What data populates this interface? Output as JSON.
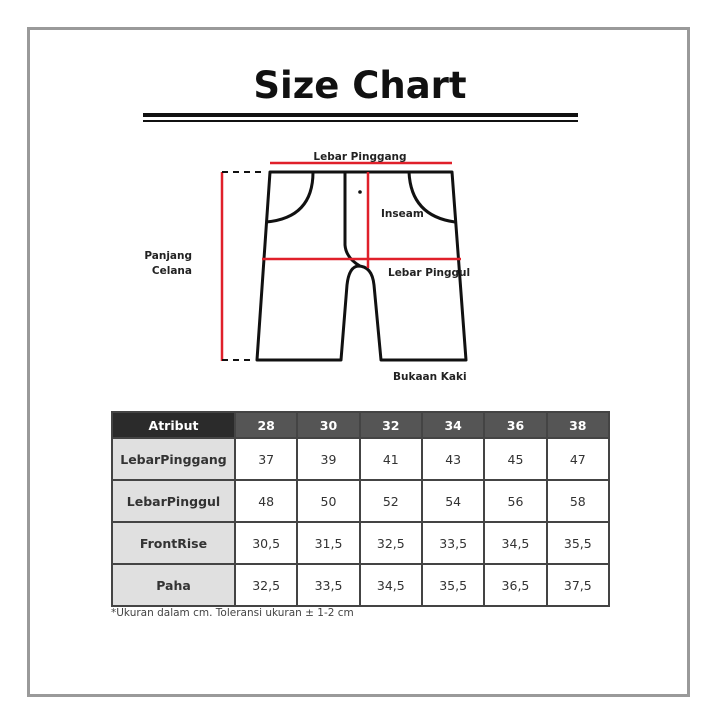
{
  "title": "Size Chart",
  "diagram": {
    "labels": {
      "waist": "Lebar Pinggang",
      "inseam": "Inseam",
      "hip": "Lebar Pinggul",
      "length_1": "Panjang",
      "length_2": "Celana",
      "leg_opening": "Bukaan Kaki"
    },
    "colors": {
      "measure_line": "#e0202a",
      "outline": "#111111"
    }
  },
  "table": {
    "header": [
      "Atribut",
      "28",
      "30",
      "32",
      "34",
      "36",
      "38"
    ],
    "rows": [
      {
        "attr": "LebarPinggang",
        "values": [
          "37",
          "39",
          "41",
          "43",
          "45",
          "47"
        ]
      },
      {
        "attr": "LebarPinggul",
        "values": [
          "48",
          "50",
          "52",
          "54",
          "56",
          "58"
        ]
      },
      {
        "attr": "FrontRise",
        "values": [
          "30,5",
          "31,5",
          "32,5",
          "33,5",
          "34,5",
          "35,5"
        ]
      },
      {
        "attr": "Paha",
        "values": [
          "32,5",
          "33,5",
          "34,5",
          "35,5",
          "36,5",
          "37,5"
        ]
      }
    ]
  },
  "note": "*Ukuran dalam cm. Toleransi ukuran ± 1-2 cm"
}
